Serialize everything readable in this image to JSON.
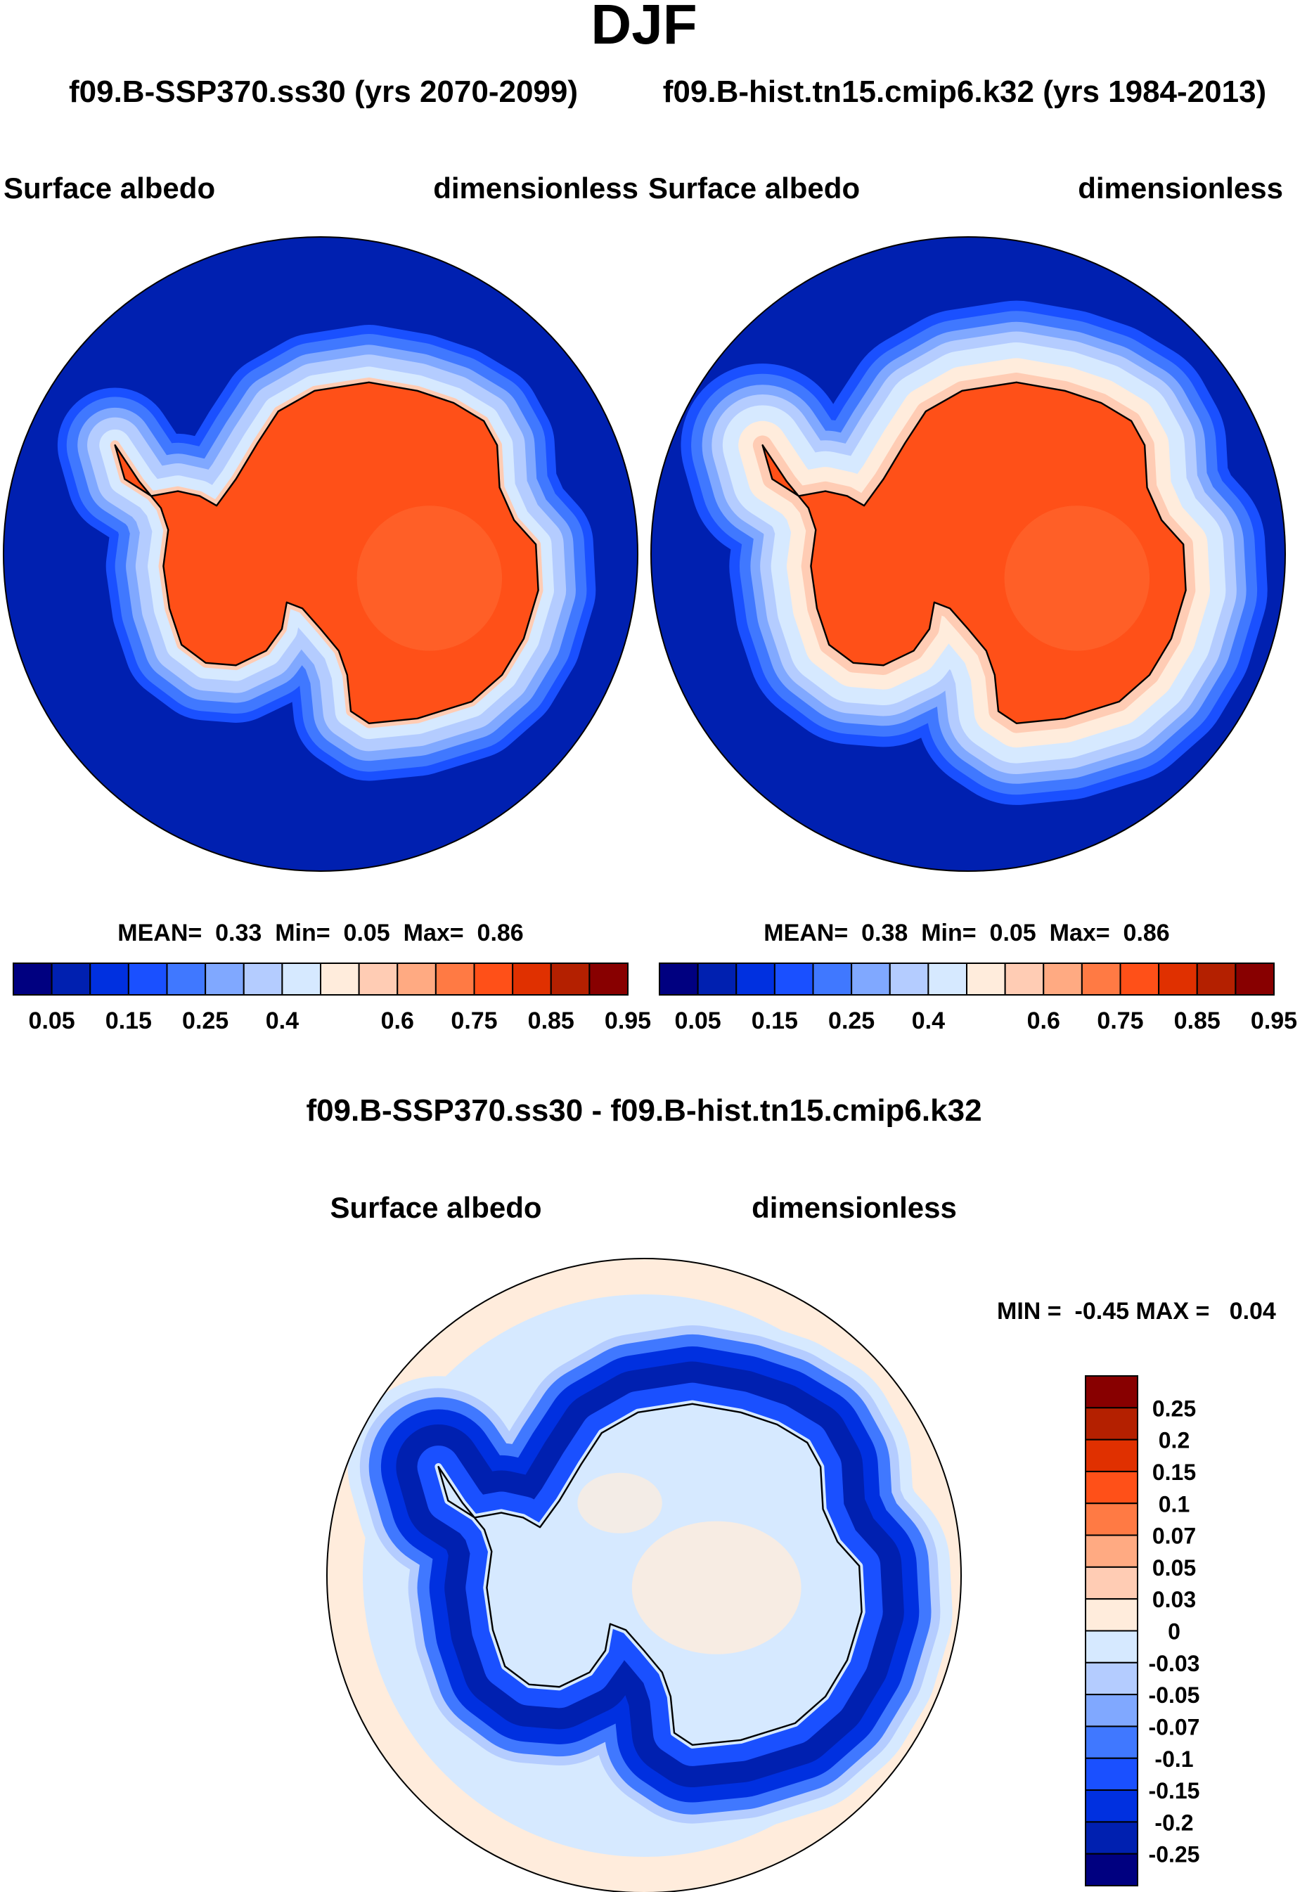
{
  "chart_data": {
    "type": "heatmap",
    "title": "DJF",
    "subtitle_left": "f09.B-SSP370.ss30 (yrs 2070-2099)",
    "subtitle_right": "f09.B-hist.tn15.cmip6.k32 (yrs 1984-2013)",
    "panels": [
      {
        "variable": "Surface albedo",
        "units": "dimensionless",
        "stats": {
          "mean_label": "MEAN=",
          "mean": "0.33",
          "min_label": "Min=",
          "min": "0.05",
          "max_label": "Max=",
          "max": "0.86"
        }
      },
      {
        "variable": "Surface albedo",
        "units": "dimensionless",
        "stats": {
          "mean_label": "MEAN=",
          "mean": "0.38",
          "min_label": "Min=",
          "min": "0.05",
          "max_label": "Max=",
          "max": "0.86"
        }
      }
    ],
    "abs_colorbar": {
      "colors": [
        "#000080",
        "#0020b0",
        "#0030e0",
        "#1a50ff",
        "#4078ff",
        "#80a8ff",
        "#b4ccff",
        "#d6e9ff",
        "#ffecdc",
        "#ffccb4",
        "#ffaa82",
        "#ff7a44",
        "#ff5018",
        "#e03000",
        "#b42000",
        "#880000"
      ],
      "tick_labels": [
        "0.05",
        "0.15",
        "0.25",
        "0.4",
        "0.6",
        "0.75",
        "0.85",
        "0.95"
      ]
    },
    "diff": {
      "title": "f09.B-SSP370.ss30 - f09.B-hist.tn15.cmip6.k32",
      "variable": "Surface albedo",
      "units": "dimensionless",
      "minmax": "MIN =  -0.45 MAX =   0.04",
      "colorbar": {
        "colors": [
          "#880000",
          "#b42000",
          "#e03000",
          "#ff5018",
          "#ff7a44",
          "#ffaa82",
          "#ffccb4",
          "#ffecdc",
          "#d6e9ff",
          "#b4ccff",
          "#80a8ff",
          "#4078ff",
          "#1a50ff",
          "#0030e0",
          "#0020b0",
          "#000080"
        ],
        "tick_labels": [
          "0.25",
          "0.2",
          "0.15",
          "0.1",
          "0.07",
          "0.05",
          "0.03",
          "0",
          "-0.03",
          "-0.05",
          "-0.07",
          "-0.1",
          "-0.15",
          "-0.2",
          "-0.25"
        ]
      }
    }
  }
}
